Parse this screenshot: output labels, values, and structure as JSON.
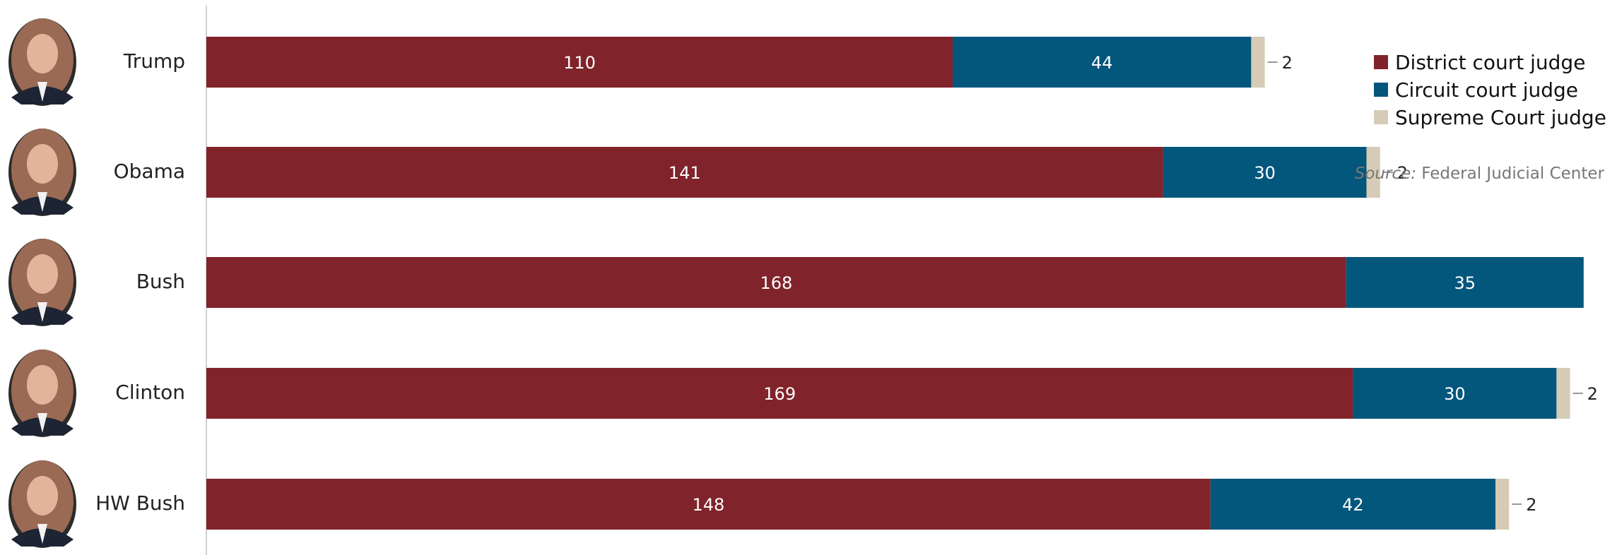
{
  "chart_data": {
    "type": "bar",
    "orientation": "horizontal",
    "stacked": true,
    "categories": [
      "Trump",
      "Obama",
      "Bush",
      "Clinton",
      "HW Bush"
    ],
    "series": [
      {
        "name": "District court judge",
        "color": "#80232a",
        "values": [
          110,
          141,
          168,
          169,
          148
        ]
      },
      {
        "name": "Circuit court judge",
        "color": "#03567c",
        "values": [
          44,
          30,
          35,
          30,
          42
        ]
      },
      {
        "name": "Supreme Court judge",
        "color": "#d6cbb6",
        "values": [
          2,
          2,
          0,
          2,
          2
        ]
      }
    ],
    "portraits": [
      "Trump",
      "Obama",
      "Bush",
      "Clinton",
      "HW Bush"
    ],
    "legend_position": "top-right",
    "source_prefix": "Source:",
    "source_text": "Federal Judicial Center",
    "grid": false
  }
}
